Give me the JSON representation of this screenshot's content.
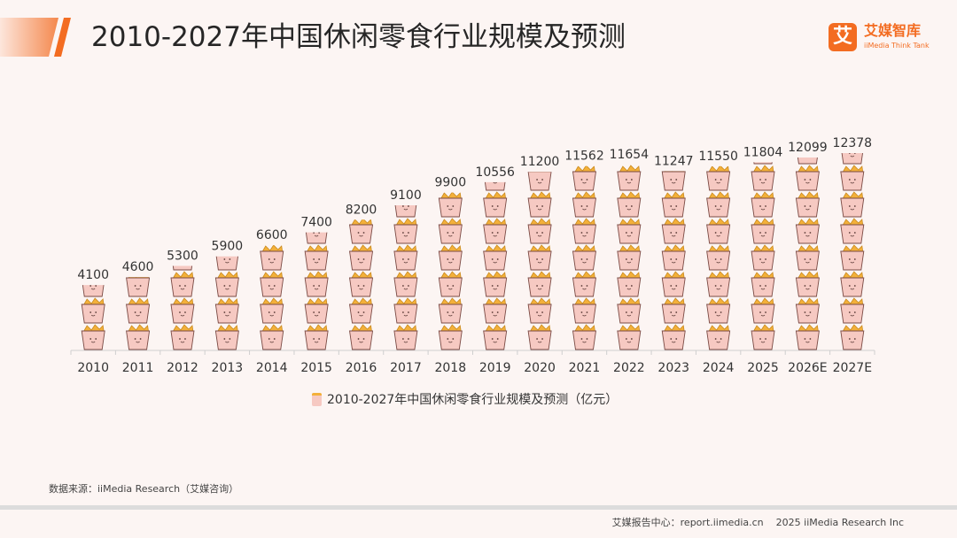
{
  "header": {
    "title": "2010-2027年中国休闲零食行业规模及预测",
    "logo_cn": "艾媒智库",
    "logo_en": "iiMedia Think Tank",
    "logo_mark": "艾"
  },
  "chart_data": {
    "type": "bar",
    "title": "",
    "categories": [
      "2010",
      "2011",
      "2012",
      "2013",
      "2014",
      "2015",
      "2016",
      "2017",
      "2018",
      "2019",
      "2020",
      "2021",
      "2022",
      "2023",
      "2024",
      "2025",
      "2026E",
      "2027E"
    ],
    "series": [
      {
        "name": "2010-2027年中国休闲零食行业规模及预测（亿元）",
        "values": [
          4100,
          4600,
          5300,
          5900,
          6600,
          7400,
          8200,
          9100,
          9900,
          10556,
          11200,
          11562,
          11654,
          11247,
          11550,
          11804,
          12099,
          12378
        ]
      }
    ],
    "ylim": [
      0,
      13000
    ],
    "value_labels": true,
    "legend_position": "bottom",
    "grid": false,
    "bar_fill": "stacked pictogram (snack bags)"
  },
  "colors": {
    "accent": "#f36c21",
    "bag_body": "#f6c9c2",
    "bag_top": "#f3b03a",
    "background": "#fcf5f3"
  },
  "footer": {
    "source": "数据来源：iiMedia Research（艾媒咨询）",
    "report_site": "艾媒报告中心：report.iimedia.cn",
    "copyright": "2025 iiMedia Research Inc"
  }
}
